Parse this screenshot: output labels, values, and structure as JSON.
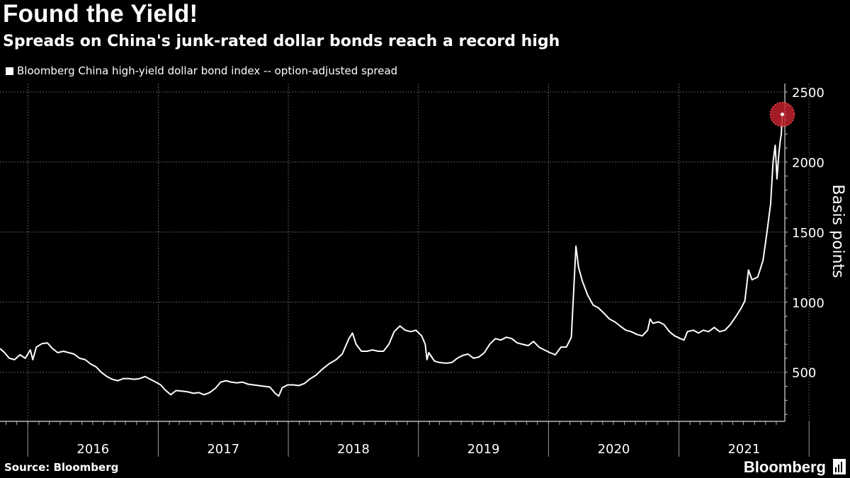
{
  "header": {
    "title": "Found the Yield!",
    "subtitle": "Spreads on China's junk-rated dollar bonds reach a record high"
  },
  "footer": {
    "source": "Source: Bloomberg",
    "brand": "Bloomberg"
  },
  "colors": {
    "background": "#000000",
    "line": "#ffffff",
    "grid": "#5a5a5a",
    "highlight": "#c0202a"
  },
  "chart_data": {
    "type": "line",
    "title": "Found the Yield!",
    "subtitle": "Spreads on China's junk-rated dollar bonds reach a record high",
    "xlabel": "",
    "ylabel": "Basis points",
    "y_axis_side": "right",
    "ylim": [
      150,
      2560
    ],
    "xlim": [
      "2015-10-15",
      "2021-10-25"
    ],
    "yticks": [
      500,
      1000,
      1500,
      2000,
      2500
    ],
    "ytick_labels": [
      "500",
      "1000",
      "1500",
      "2000",
      "2500"
    ],
    "xticks": [
      "2016",
      "2017",
      "2018",
      "2019",
      "2020",
      "2021"
    ],
    "grid": true,
    "legend_position": "top-left",
    "highlight_last_point": true,
    "series": [
      {
        "name": "Bloomberg China high-yield dollar bond index -- option-adjusted spread",
        "points": [
          [
            "2015-10-15",
            670
          ],
          [
            "2015-10-28",
            640
          ],
          [
            "2015-11-10",
            600
          ],
          [
            "2015-11-25",
            590
          ],
          [
            "2015-12-10",
            625
          ],
          [
            "2015-12-25",
            600
          ],
          [
            "2016-01-08",
            660
          ],
          [
            "2016-01-15",
            590
          ],
          [
            "2016-01-25",
            680
          ],
          [
            "2016-02-10",
            705
          ],
          [
            "2016-02-25",
            710
          ],
          [
            "2016-03-10",
            670
          ],
          [
            "2016-03-25",
            640
          ],
          [
            "2016-04-10",
            650
          ],
          [
            "2016-04-25",
            640
          ],
          [
            "2016-05-10",
            630
          ],
          [
            "2016-05-25",
            600
          ],
          [
            "2016-06-10",
            590
          ],
          [
            "2016-06-25",
            560
          ],
          [
            "2016-07-10",
            540
          ],
          [
            "2016-07-25",
            500
          ],
          [
            "2016-08-10",
            470
          ],
          [
            "2016-08-25",
            450
          ],
          [
            "2016-09-10",
            440
          ],
          [
            "2016-09-25",
            455
          ],
          [
            "2016-10-10",
            455
          ],
          [
            "2016-10-25",
            450
          ],
          [
            "2016-11-10",
            455
          ],
          [
            "2016-11-25",
            470
          ],
          [
            "2016-12-10",
            450
          ],
          [
            "2016-12-25",
            430
          ],
          [
            "2017-01-08",
            410
          ],
          [
            "2017-01-20",
            375
          ],
          [
            "2017-02-05",
            340
          ],
          [
            "2017-02-20",
            370
          ],
          [
            "2017-03-10",
            365
          ],
          [
            "2017-03-25",
            360
          ],
          [
            "2017-04-10",
            350
          ],
          [
            "2017-04-25",
            355
          ],
          [
            "2017-05-10",
            340
          ],
          [
            "2017-05-25",
            355
          ],
          [
            "2017-06-10",
            385
          ],
          [
            "2017-06-25",
            430
          ],
          [
            "2017-07-10",
            440
          ],
          [
            "2017-07-25",
            430
          ],
          [
            "2017-08-10",
            425
          ],
          [
            "2017-08-25",
            430
          ],
          [
            "2017-09-10",
            415
          ],
          [
            "2017-09-25",
            410
          ],
          [
            "2017-10-10",
            405
          ],
          [
            "2017-10-25",
            400
          ],
          [
            "2017-11-10",
            395
          ],
          [
            "2017-11-25",
            350
          ],
          [
            "2017-12-05",
            330
          ],
          [
            "2017-12-15",
            390
          ],
          [
            "2017-12-30",
            410
          ],
          [
            "2018-01-15",
            410
          ],
          [
            "2018-01-30",
            405
          ],
          [
            "2018-02-15",
            420
          ],
          [
            "2018-03-01",
            450
          ],
          [
            "2018-03-20",
            480
          ],
          [
            "2018-04-05",
            520
          ],
          [
            "2018-04-25",
            560
          ],
          [
            "2018-05-15",
            590
          ],
          [
            "2018-06-01",
            630
          ],
          [
            "2018-06-20",
            740
          ],
          [
            "2018-06-30",
            780
          ],
          [
            "2018-07-10",
            700
          ],
          [
            "2018-07-25",
            650
          ],
          [
            "2018-08-10",
            650
          ],
          [
            "2018-08-25",
            660
          ],
          [
            "2018-09-10",
            650
          ],
          [
            "2018-09-25",
            650
          ],
          [
            "2018-10-10",
            700
          ],
          [
            "2018-10-25",
            790
          ],
          [
            "2018-11-10",
            830
          ],
          [
            "2018-11-25",
            800
          ],
          [
            "2018-12-10",
            790
          ],
          [
            "2018-12-25",
            800
          ],
          [
            "2019-01-10",
            760
          ],
          [
            "2019-01-20",
            700
          ],
          [
            "2019-01-25",
            590
          ],
          [
            "2019-01-30",
            640
          ],
          [
            "2019-02-15",
            580
          ],
          [
            "2019-03-01",
            570
          ],
          [
            "2019-03-20",
            565
          ],
          [
            "2019-04-05",
            570
          ],
          [
            "2019-04-20",
            600
          ],
          [
            "2019-05-05",
            620
          ],
          [
            "2019-05-20",
            630
          ],
          [
            "2019-06-05",
            600
          ],
          [
            "2019-06-20",
            610
          ],
          [
            "2019-07-05",
            640
          ],
          [
            "2019-07-20",
            700
          ],
          [
            "2019-08-05",
            740
          ],
          [
            "2019-08-20",
            730
          ],
          [
            "2019-09-05",
            750
          ],
          [
            "2019-09-20",
            740
          ],
          [
            "2019-10-05",
            710
          ],
          [
            "2019-10-20",
            700
          ],
          [
            "2019-11-05",
            690
          ],
          [
            "2019-11-20",
            720
          ],
          [
            "2019-12-05",
            680
          ],
          [
            "2019-12-20",
            660
          ],
          [
            "2020-01-05",
            640
          ],
          [
            "2020-01-20",
            625
          ],
          [
            "2020-02-05",
            680
          ],
          [
            "2020-02-20",
            680
          ],
          [
            "2020-03-05",
            750
          ],
          [
            "2020-03-12",
            1100
          ],
          [
            "2020-03-18",
            1400
          ],
          [
            "2020-03-25",
            1250
          ],
          [
            "2020-04-05",
            1150
          ],
          [
            "2020-04-20",
            1050
          ],
          [
            "2020-05-05",
            980
          ],
          [
            "2020-05-20",
            960
          ],
          [
            "2020-06-05",
            920
          ],
          [
            "2020-06-20",
            880
          ],
          [
            "2020-07-05",
            860
          ],
          [
            "2020-07-20",
            830
          ],
          [
            "2020-08-05",
            800
          ],
          [
            "2020-08-20",
            790
          ],
          [
            "2020-09-05",
            770
          ],
          [
            "2020-09-20",
            760
          ],
          [
            "2020-10-05",
            800
          ],
          [
            "2020-10-12",
            880
          ],
          [
            "2020-10-20",
            850
          ],
          [
            "2020-11-05",
            860
          ],
          [
            "2020-11-20",
            840
          ],
          [
            "2020-12-05",
            790
          ],
          [
            "2020-12-20",
            760
          ],
          [
            "2021-01-05",
            740
          ],
          [
            "2021-01-15",
            730
          ],
          [
            "2021-01-25",
            790
          ],
          [
            "2021-02-10",
            800
          ],
          [
            "2021-02-25",
            780
          ],
          [
            "2021-03-10",
            800
          ],
          [
            "2021-03-25",
            790
          ],
          [
            "2021-04-10",
            820
          ],
          [
            "2021-04-25",
            790
          ],
          [
            "2021-05-10",
            800
          ],
          [
            "2021-05-25",
            840
          ],
          [
            "2021-06-10",
            900
          ],
          [
            "2021-06-25",
            960
          ],
          [
            "2021-07-05",
            1010
          ],
          [
            "2021-07-15",
            1230
          ],
          [
            "2021-07-25",
            1160
          ],
          [
            "2021-08-10",
            1180
          ],
          [
            "2021-08-25",
            1300
          ],
          [
            "2021-09-05",
            1500
          ],
          [
            "2021-09-15",
            1700
          ],
          [
            "2021-09-22",
            2000
          ],
          [
            "2021-09-28",
            2120
          ],
          [
            "2021-10-03",
            1880
          ],
          [
            "2021-10-08",
            2050
          ],
          [
            "2021-10-12",
            2150
          ],
          [
            "2021-10-15",
            2200
          ],
          [
            "2021-10-18",
            2340
          ]
        ]
      }
    ]
  }
}
